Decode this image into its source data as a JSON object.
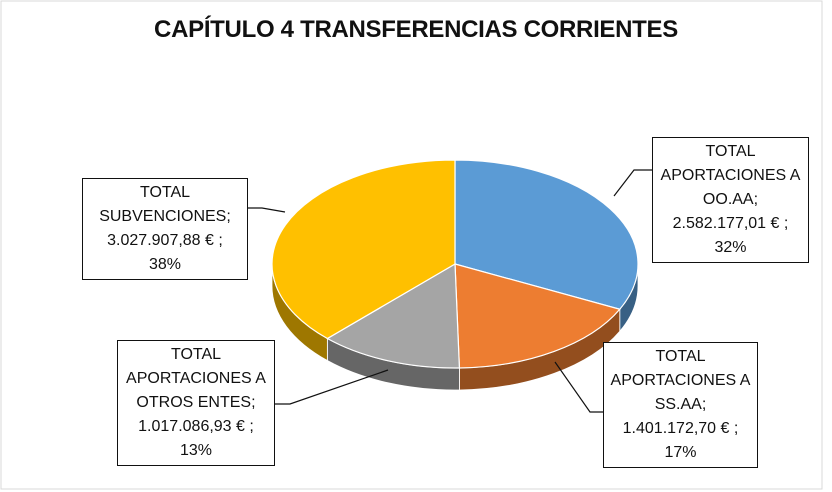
{
  "chart_data": {
    "type": "pie",
    "title": "CAPÍTULO 4 TRANSFERENCIAS CORRIENTES",
    "categories": [
      "TOTAL APORTACIONES A OO.AA",
      "TOTAL APORTACIONES A SS.AA",
      "TOTAL APORTACIONES A OTROS ENTES",
      "TOTAL SUBVENCIONES"
    ],
    "values": [
      2582177.01,
      1401172.7,
      1017086.93,
      3027907.88
    ],
    "value_labels": [
      "2.582.177,01 €",
      "1.401.172,70 €",
      "1.017.086,93 €",
      "3.027.907,88 €"
    ],
    "percent_labels": [
      "32%",
      "17%",
      "13%",
      "38%"
    ],
    "separator": ";",
    "colors": [
      "#5b9bd5",
      "#ed7d31",
      "#a5a5a5",
      "#ffc000"
    ],
    "three_d": true
  }
}
